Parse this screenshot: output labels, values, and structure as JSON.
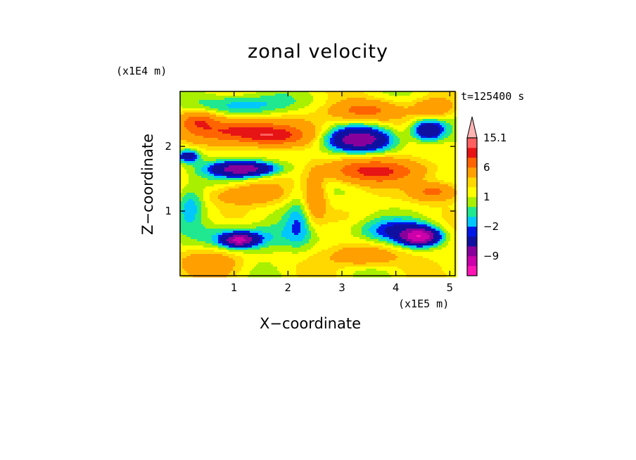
{
  "chart_data": {
    "type": "heatmap",
    "title": "zonal velocity",
    "xlabel": "X−coordinate",
    "ylabel": "Z−coordinate",
    "x_unit": "(x1E5 m)",
    "y_unit": "(x1E4 m)",
    "annotation": "t=125400 s",
    "xlim": [
      0,
      5.1
    ],
    "ylim": [
      0,
      2.85
    ],
    "x_ticks": [
      "1",
      "2",
      "3",
      "4",
      "5"
    ],
    "y_ticks": [
      "1",
      "2"
    ],
    "colorbar": {
      "labels": [
        "15.1",
        "6",
        "1",
        "−2",
        "−9"
      ],
      "levels": [
        -15,
        -12,
        -9,
        -6,
        -3,
        -2,
        -1,
        0,
        1,
        2,
        3,
        6,
        9,
        12,
        15.1
      ],
      "colors": [
        "#ff14b4",
        "#cc00aa",
        "#88009c",
        "#1010a0",
        "#0018e6",
        "#00c8ff",
        "#20e890",
        "#a8f000",
        "#ffff00",
        "#ffd800",
        "#ffa000",
        "#ff6400",
        "#e61414",
        "#ff6060",
        "#ffb4b4"
      ],
      "extend": "max"
    },
    "features": [
      {
        "x": 1.1,
        "z": 2.25,
        "value": 8,
        "sx": 0.9,
        "sz": 0.17
      },
      {
        "x": 1.7,
        "z": 2.15,
        "value": 7,
        "sx": 0.6,
        "sz": 0.14
      },
      {
        "x": 0.35,
        "z": 2.4,
        "value": 5,
        "sx": 0.3,
        "sz": 0.13
      },
      {
        "x": 3.3,
        "z": 2.1,
        "value": -9,
        "sx": 0.6,
        "sz": 0.18
      },
      {
        "x": 3.4,
        "z": 2.55,
        "value": 6,
        "sx": 0.6,
        "sz": 0.15
      },
      {
        "x": 1.2,
        "z": 2.65,
        "value": -3,
        "sx": 1.0,
        "sz": 0.16
      },
      {
        "x": 1.2,
        "z": 1.65,
        "value": -10,
        "sx": 0.6,
        "sz": 0.12
      },
      {
        "x": 3.6,
        "z": 1.62,
        "value": 8,
        "sx": 0.9,
        "sz": 0.17
      },
      {
        "x": 4.6,
        "z": 2.25,
        "value": -8,
        "sx": 0.3,
        "sz": 0.16
      },
      {
        "x": 4.7,
        "z": 2.6,
        "value": 4,
        "sx": 0.35,
        "sz": 0.14
      },
      {
        "x": 4.7,
        "z": 1.3,
        "value": 6,
        "sx": 0.4,
        "sz": 0.14
      },
      {
        "x": 3.9,
        "z": 0.7,
        "value": -4,
        "sx": 0.8,
        "sz": 0.18
      },
      {
        "x": 4.45,
        "z": 0.6,
        "value": -11,
        "sx": 0.35,
        "sz": 0.13
      },
      {
        "x": 1.2,
        "z": 0.6,
        "value": -4,
        "sx": 0.7,
        "sz": 0.2
      },
      {
        "x": 1.1,
        "z": 0.55,
        "value": -9,
        "sx": 0.3,
        "sz": 0.1
      },
      {
        "x": 0.6,
        "z": 0.2,
        "value": 3,
        "sx": 0.6,
        "sz": 0.2
      },
      {
        "x": 3.4,
        "z": 0.3,
        "value": 4,
        "sx": 0.6,
        "sz": 0.15
      },
      {
        "x": 1.2,
        "z": 1.25,
        "value": 4,
        "sx": 0.6,
        "sz": 0.15
      },
      {
        "x": 2.2,
        "z": 0.85,
        "value": -2.5,
        "sx": 0.25,
        "sz": 0.4
      },
      {
        "x": 0.2,
        "z": 1.1,
        "value": -3,
        "sx": 0.25,
        "sz": 0.3
      },
      {
        "x": 2.5,
        "z": 1.2,
        "value": 4,
        "sx": 0.2,
        "sz": 0.4
      },
      {
        "x": 0.15,
        "z": 1.85,
        "value": -6,
        "sx": 0.2,
        "sz": 0.1
      }
    ]
  }
}
